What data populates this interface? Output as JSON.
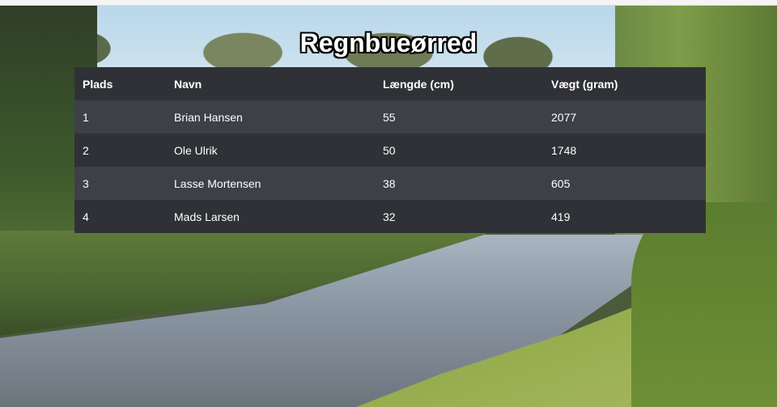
{
  "title": "Regnbueørred",
  "table": {
    "headers": [
      "Plads",
      "Navn",
      "Længde (cm)",
      "Vægt (gram)"
    ],
    "rows": [
      [
        "1",
        "Brian Hansen",
        "55",
        "2077"
      ],
      [
        "2",
        "Ole Ulrik",
        "50",
        "1748"
      ],
      [
        "3",
        "Lasse Mortensen",
        "38",
        "605"
      ],
      [
        "4",
        "Mads Larsen",
        "32",
        "419"
      ]
    ]
  }
}
